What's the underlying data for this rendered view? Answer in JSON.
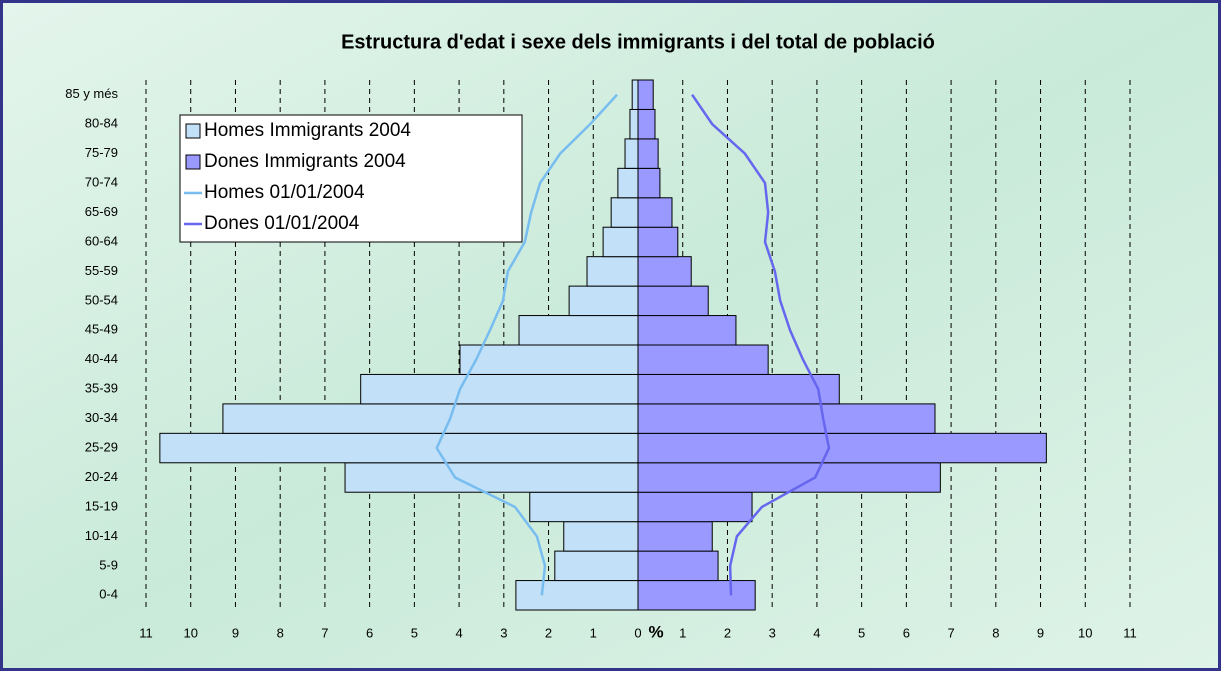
{
  "chart_data": {
    "type": "bar",
    "orientation": "horizontal",
    "title": "Estructura d'edat i sexe dels immigrants i del total de població",
    "x_label": "%",
    "categories": [
      "0-4",
      "5-9",
      "10-14",
      "15-19",
      "20-24",
      "25-29",
      "30-34",
      "35-39",
      "40-44",
      "45-49",
      "50-54",
      "55-59",
      "60-64",
      "65-69",
      "70-74",
      "75-79",
      "80-84",
      "85 y més"
    ],
    "series": [
      {
        "name": "Homes Immigrants 2004",
        "type": "bar",
        "color": "#c2e0f7",
        "values": [
          -2.73,
          -1.86,
          -1.66,
          -2.42,
          -6.55,
          -10.69,
          -9.28,
          -6.2,
          -3.98,
          -2.66,
          -1.54,
          -1.14,
          -0.78,
          -0.6,
          -0.45,
          -0.29,
          -0.18,
          -0.13
        ]
      },
      {
        "name": "Dones Immigrants 2004",
        "type": "bar",
        "color": "#9999ff",
        "values": [
          2.62,
          1.79,
          1.66,
          2.55,
          6.76,
          9.13,
          6.64,
          4.5,
          2.91,
          2.19,
          1.57,
          1.19,
          0.89,
          0.76,
          0.49,
          0.45,
          0.38,
          0.34
        ]
      },
      {
        "name": "Homes 01/01/2004",
        "type": "line",
        "color": "#78bdf0",
        "values": [
          -2.15,
          -2.08,
          -2.26,
          -2.75,
          -4.09,
          -4.5,
          -4.2,
          -3.98,
          -3.62,
          -3.31,
          -3.02,
          -2.91,
          -2.53,
          -2.39,
          -2.19,
          -1.74,
          -1.07,
          -0.47
        ]
      },
      {
        "name": "Dones 01/01/2004",
        "type": "line",
        "color": "#6666ee",
        "values": [
          2.08,
          2.06,
          2.21,
          2.77,
          3.96,
          4.27,
          4.14,
          4.03,
          3.69,
          3.4,
          3.18,
          3.06,
          2.84,
          2.91,
          2.84,
          2.39,
          1.66,
          1.21
        ]
      }
    ],
    "xlim": [
      -11,
      11
    ],
    "xticks": [
      {
        "value": -11,
        "label": "11"
      },
      {
        "value": -10,
        "label": "10"
      },
      {
        "value": -9,
        "label": "9"
      },
      {
        "value": -8,
        "label": "8"
      },
      {
        "value": -7,
        "label": "7"
      },
      {
        "value": -6,
        "label": "6"
      },
      {
        "value": -5,
        "label": "5"
      },
      {
        "value": -4,
        "label": "4"
      },
      {
        "value": -3,
        "label": "3"
      },
      {
        "value": -2,
        "label": "2"
      },
      {
        "value": -1,
        "label": "1"
      },
      0,
      1,
      2,
      3,
      4,
      5,
      6,
      7,
      8,
      9,
      10,
      11
    ],
    "grid": true,
    "legend": "upper left"
  }
}
